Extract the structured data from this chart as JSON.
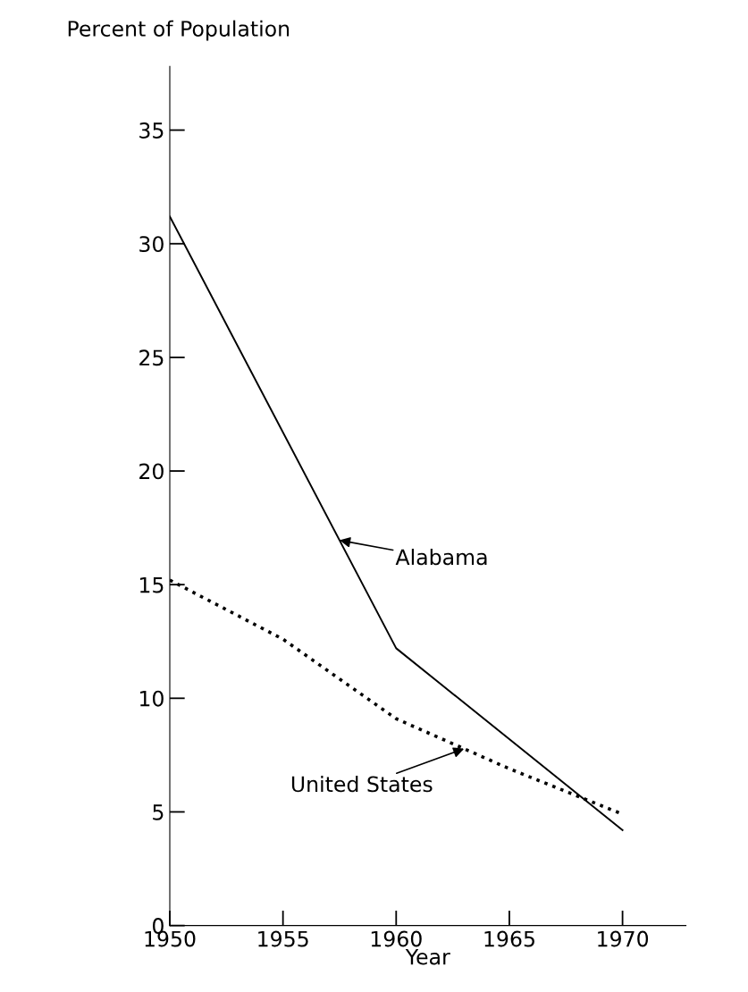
{
  "chart_data": {
    "type": "line",
    "ylabel": "Percent of Population",
    "xlabel": "Year",
    "xlim": [
      1950,
      1972.8
    ],
    "xticks": [
      1950,
      1955,
      1960,
      1965,
      1970
    ],
    "ylim": [
      0,
      37.8
    ],
    "yticks": [
      0,
      5,
      10,
      15,
      20,
      25,
      30,
      35
    ],
    "grid": false,
    "marker": "none",
    "series": [
      {
        "x": [
          1950,
          1960,
          1970
        ],
        "values": [
          31.2,
          12.2,
          4.2
        ],
        "color": "#000000",
        "line_style": "solid"
      },
      {
        "x": [
          1950,
          1955,
          1960,
          1965,
          1970
        ],
        "values": [
          15.2,
          12.6,
          9.1,
          6.9,
          4.9
        ],
        "color": "#000000",
        "line_style": "dotted"
      }
    ],
    "annotations": [
      {
        "text": "Alabama",
        "x": 1957.5,
        "y": 16.95
      },
      {
        "text": "United States",
        "x": 1963,
        "y": 7.78
      }
    ]
  }
}
